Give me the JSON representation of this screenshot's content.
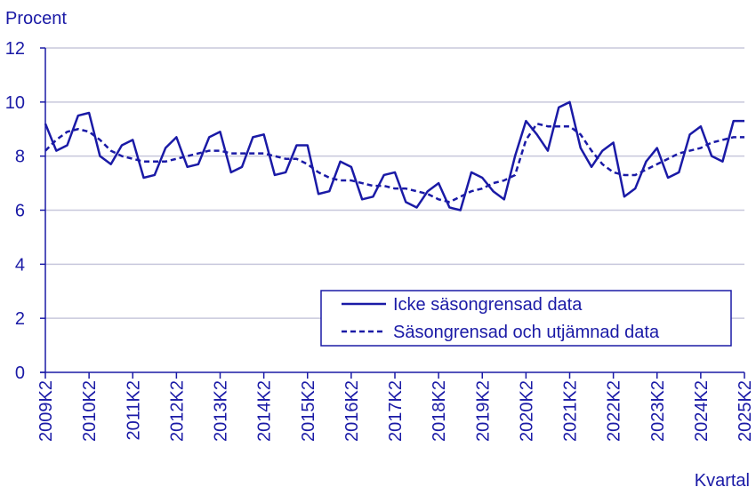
{
  "chart_data": {
    "type": "line",
    "ylabel": "Procent",
    "xlabel": "Kvartal",
    "ylim": [
      0,
      12
    ],
    "yticks": [
      0,
      2,
      4,
      6,
      8,
      10,
      12
    ],
    "x_tick_labels": [
      "2009K2",
      "2010K2",
      "2011K2",
      "2012K2",
      "2013K2",
      "2014K2",
      "2015K2",
      "2016K2",
      "2017K2",
      "2018K2",
      "2019K2",
      "2020K2",
      "2021K2",
      "2022K2",
      "2023K2",
      "2024K2",
      "2025K2"
    ],
    "grid": "horizontal",
    "legend_position": "bottom-right",
    "colors": {
      "line": "#1a1aa6",
      "grid": "#c8c8dc",
      "axis": "#1a1aa6"
    },
    "quarters": [
      "2009K2",
      "2009K3",
      "2009K4",
      "2010K1",
      "2010K2",
      "2010K3",
      "2010K4",
      "2011K1",
      "2011K2",
      "2011K3",
      "2011K4",
      "2012K1",
      "2012K2",
      "2012K3",
      "2012K4",
      "2013K1",
      "2013K2",
      "2013K3",
      "2013K4",
      "2014K1",
      "2014K2",
      "2014K3",
      "2014K4",
      "2015K1",
      "2015K2",
      "2015K3",
      "2015K4",
      "2016K1",
      "2016K2",
      "2016K3",
      "2016K4",
      "2017K1",
      "2017K2",
      "2017K3",
      "2017K4",
      "2018K1",
      "2018K2",
      "2018K3",
      "2018K4",
      "2019K1",
      "2019K2",
      "2019K3",
      "2019K4",
      "2020K1",
      "2020K2",
      "2020K3",
      "2020K4",
      "2021K1",
      "2021K2",
      "2021K3",
      "2021K4",
      "2022K1",
      "2022K2",
      "2022K3",
      "2022K4",
      "2023K1",
      "2023K2",
      "2023K3",
      "2023K4",
      "2024K1",
      "2024K2",
      "2024K3",
      "2024K4",
      "2025K1",
      "2025K2"
    ],
    "series": [
      {
        "name": "Icke säsongrensad data",
        "style": "solid",
        "values": [
          9.2,
          8.2,
          8.4,
          9.5,
          9.6,
          8.0,
          7.7,
          8.4,
          8.6,
          7.2,
          7.3,
          8.3,
          8.7,
          7.6,
          7.7,
          8.7,
          8.9,
          7.4,
          7.6,
          8.7,
          8.8,
          7.3,
          7.4,
          8.4,
          8.4,
          6.6,
          6.7,
          7.8,
          7.6,
          6.4,
          6.5,
          7.3,
          7.4,
          6.3,
          6.1,
          6.7,
          7.0,
          6.1,
          6.0,
          7.4,
          7.2,
          6.7,
          6.4,
          8.0,
          9.3,
          8.8,
          8.2,
          9.8,
          10.0,
          8.3,
          7.6,
          8.2,
          8.5,
          6.5,
          6.8,
          7.8,
          8.3,
          7.2,
          7.4,
          8.8,
          9.1,
          8.0,
          7.8,
          9.3,
          9.3
        ]
      },
      {
        "name": "Säsongrensad och utjämnad data",
        "style": "dashed",
        "values": [
          8.2,
          8.6,
          8.9,
          9.0,
          8.9,
          8.6,
          8.2,
          8.0,
          7.9,
          7.8,
          7.8,
          7.8,
          7.9,
          8.0,
          8.1,
          8.2,
          8.2,
          8.1,
          8.1,
          8.1,
          8.1,
          8.0,
          7.9,
          7.9,
          7.7,
          7.4,
          7.2,
          7.1,
          7.1,
          7.0,
          6.9,
          6.9,
          6.8,
          6.8,
          6.7,
          6.6,
          6.4,
          6.3,
          6.5,
          6.7,
          6.8,
          7.0,
          7.1,
          7.3,
          8.6,
          9.2,
          9.1,
          9.1,
          9.1,
          8.8,
          8.2,
          7.7,
          7.4,
          7.3,
          7.3,
          7.5,
          7.7,
          7.9,
          8.1,
          8.2,
          8.3,
          8.5,
          8.6,
          8.7,
          8.7
        ]
      }
    ]
  }
}
